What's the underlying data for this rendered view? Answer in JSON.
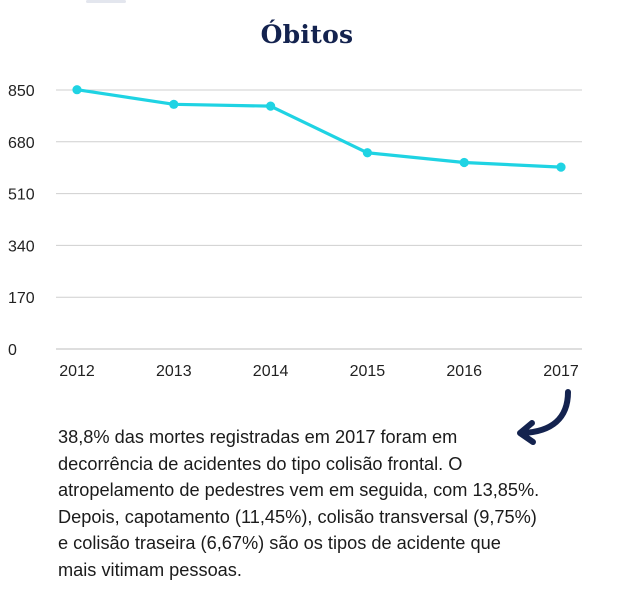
{
  "chart_data": {
    "type": "line",
    "title": "Óbitos",
    "categories": [
      "2012",
      "2013",
      "2014",
      "2015",
      "2016",
      "2017"
    ],
    "series": [
      {
        "name": "Óbitos",
        "values": [
          851,
          803,
          797,
          644,
          612,
          597
        ]
      }
    ],
    "y_ticks": [
      "0",
      "170",
      "340",
      "510",
      "680",
      "850"
    ],
    "ylim": [
      0,
      850
    ],
    "xlabel": "",
    "ylabel": "",
    "grid": true,
    "legend": "none",
    "line_color": "#1fd3e3",
    "grid_color": "#cfcfcf"
  },
  "caption": {
    "lines": [
      "38,8% das mortes registradas em 2017 foram em",
      "decorrência de acidentes do tipo colisão frontal. O",
      "atropelamento de pedestres vem em seguida, com 13,85%.",
      "Depois, capotamento (11,45%), colisão transversal (9,75%)",
      "e colisão traseira (6,67%) são os tipos de acidente que",
      "mais vitimam pessoas."
    ]
  },
  "arrow": {
    "icon": "curved-arrow-icon",
    "color": "#14234f"
  }
}
